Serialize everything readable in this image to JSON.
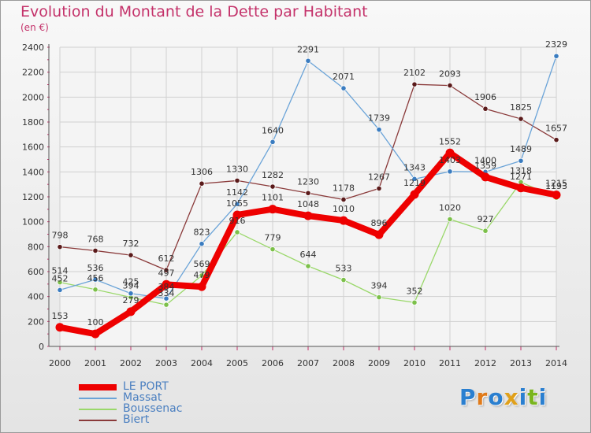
{
  "title": "Evolution du Montant de la Dette par Habitant",
  "subtitle": "(en €)",
  "logo": {
    "text": "Proxiti",
    "letter_colors": [
      "#2a7fd0",
      "#e07a1a",
      "#2a7fd0",
      "#e0a01a",
      "#2a7fd0",
      "#7ab51d",
      "#2a7fd0"
    ]
  },
  "chart_data": {
    "type": "line",
    "title": "Evolution du Montant de la Dette par Habitant",
    "subtitle": "(en €)",
    "x": [
      "2000",
      "2001",
      "2002",
      "2003",
      "2004",
      "2005",
      "2006",
      "2007",
      "2008",
      "2009",
      "2010",
      "2011",
      "2012",
      "2013",
      "2014"
    ],
    "ylim": [
      0,
      2400
    ],
    "yticks": [
      "0",
      "200",
      "400",
      "600",
      "800",
      "1000",
      "1200",
      "1400",
      "1600",
      "1800",
      "2000",
      "2200",
      "2400"
    ],
    "grid": true,
    "legend_position": "bottom-left",
    "series": [
      {
        "name": "LE PORT",
        "color": "#ee0000",
        "marker": "#ee0000",
        "values": [
          153,
          100,
          279,
          497,
          479,
          1055,
          1101,
          1048,
          1010,
          896,
          1219,
          1552,
          1359,
          1271,
          1215
        ],
        "labels": [
          "153",
          "100",
          "279",
          "497",
          "479",
          "1055",
          "1101",
          "1048",
          "1010",
          "896",
          "1219",
          "1552",
          "1359",
          "1271",
          "1215"
        ]
      },
      {
        "name": "Massat",
        "color": "#6ba4d8",
        "marker": "#3a7cc0",
        "values": [
          452,
          536,
          425,
          384,
          823,
          1142,
          1640,
          2291,
          2071,
          1739,
          1343,
          1403,
          1400,
          1489,
          2329
        ],
        "labels": [
          "452",
          "536",
          "425",
          "384",
          "823",
          "1142",
          "1640",
          "2291",
          "2071",
          "1739",
          "1343",
          "1403",
          "1400",
          "1489",
          "2329"
        ]
      },
      {
        "name": "Boussenac",
        "color": "#9ad86a",
        "marker": "#7cc04a",
        "values": [
          514,
          456,
          394,
          334,
          569,
          916,
          779,
          644,
          533,
          394,
          352,
          1020,
          927,
          1318,
          1193
        ],
        "labels": [
          "514",
          "456",
          "394",
          "334",
          "569",
          "916",
          "779",
          "644",
          "533",
          "394",
          "352",
          "1020",
          "927",
          "1318",
          "1193"
        ]
      },
      {
        "name": "Biert",
        "color": "#8a3a3a",
        "marker": "#5a1a1a",
        "values": [
          798,
          768,
          732,
          612,
          1306,
          1330,
          1282,
          1230,
          1178,
          1267,
          2102,
          2093,
          1906,
          1825,
          1657
        ],
        "labels": [
          "798",
          "768",
          "732",
          "612",
          "1306",
          "1330",
          "1282",
          "1230",
          "1178",
          "1267",
          "2102",
          "2093",
          "1906",
          "1825",
          "1657"
        ]
      }
    ]
  }
}
